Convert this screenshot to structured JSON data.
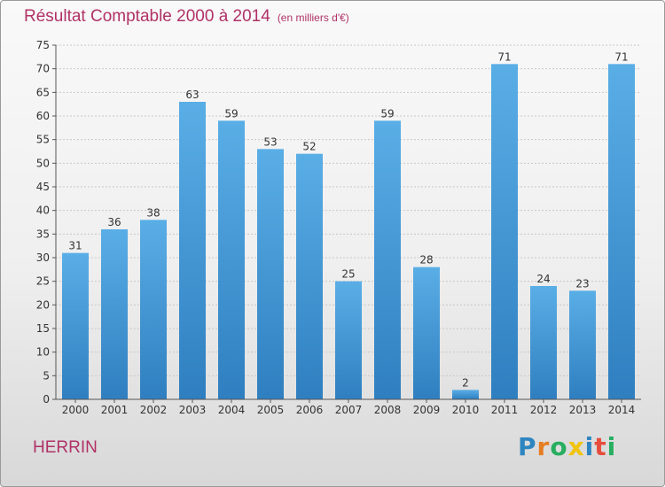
{
  "header": {
    "title": "Résultat Comptable 2000 à 2014",
    "subtitle": "(en milliers d'€)"
  },
  "commune": "HERRIN",
  "logo": {
    "text": "Proxiti",
    "letters": [
      {
        "ch": "P",
        "color": "#2e86c1"
      },
      {
        "ch": "r",
        "color": "#e67e22"
      },
      {
        "ch": "o",
        "color": "#27ae60"
      },
      {
        "ch": "x",
        "color": "#f1c40f"
      },
      {
        "ch": "i",
        "color": "#2e86c1"
      },
      {
        "ch": "t",
        "color": "#e74c3c"
      },
      {
        "ch": "i",
        "color": "#27ae60"
      }
    ]
  },
  "chart_data": {
    "type": "bar",
    "title": "Résultat Comptable 2000 à 2014",
    "xlabel": "",
    "ylabel": "",
    "ylim": [
      0,
      75
    ],
    "ytick_step": 5,
    "grid": true,
    "categories": [
      "2000",
      "2001",
      "2002",
      "2003",
      "2004",
      "2005",
      "2006",
      "2007",
      "2008",
      "2009",
      "2010",
      "2011",
      "2012",
      "2013",
      "2014"
    ],
    "values": [
      31,
      36,
      38,
      63,
      59,
      53,
      52,
      25,
      59,
      28,
      2,
      71,
      24,
      23,
      71
    ],
    "bar_color_top": "#5aaee6",
    "bar_color_bottom": "#2f7fc0"
  }
}
